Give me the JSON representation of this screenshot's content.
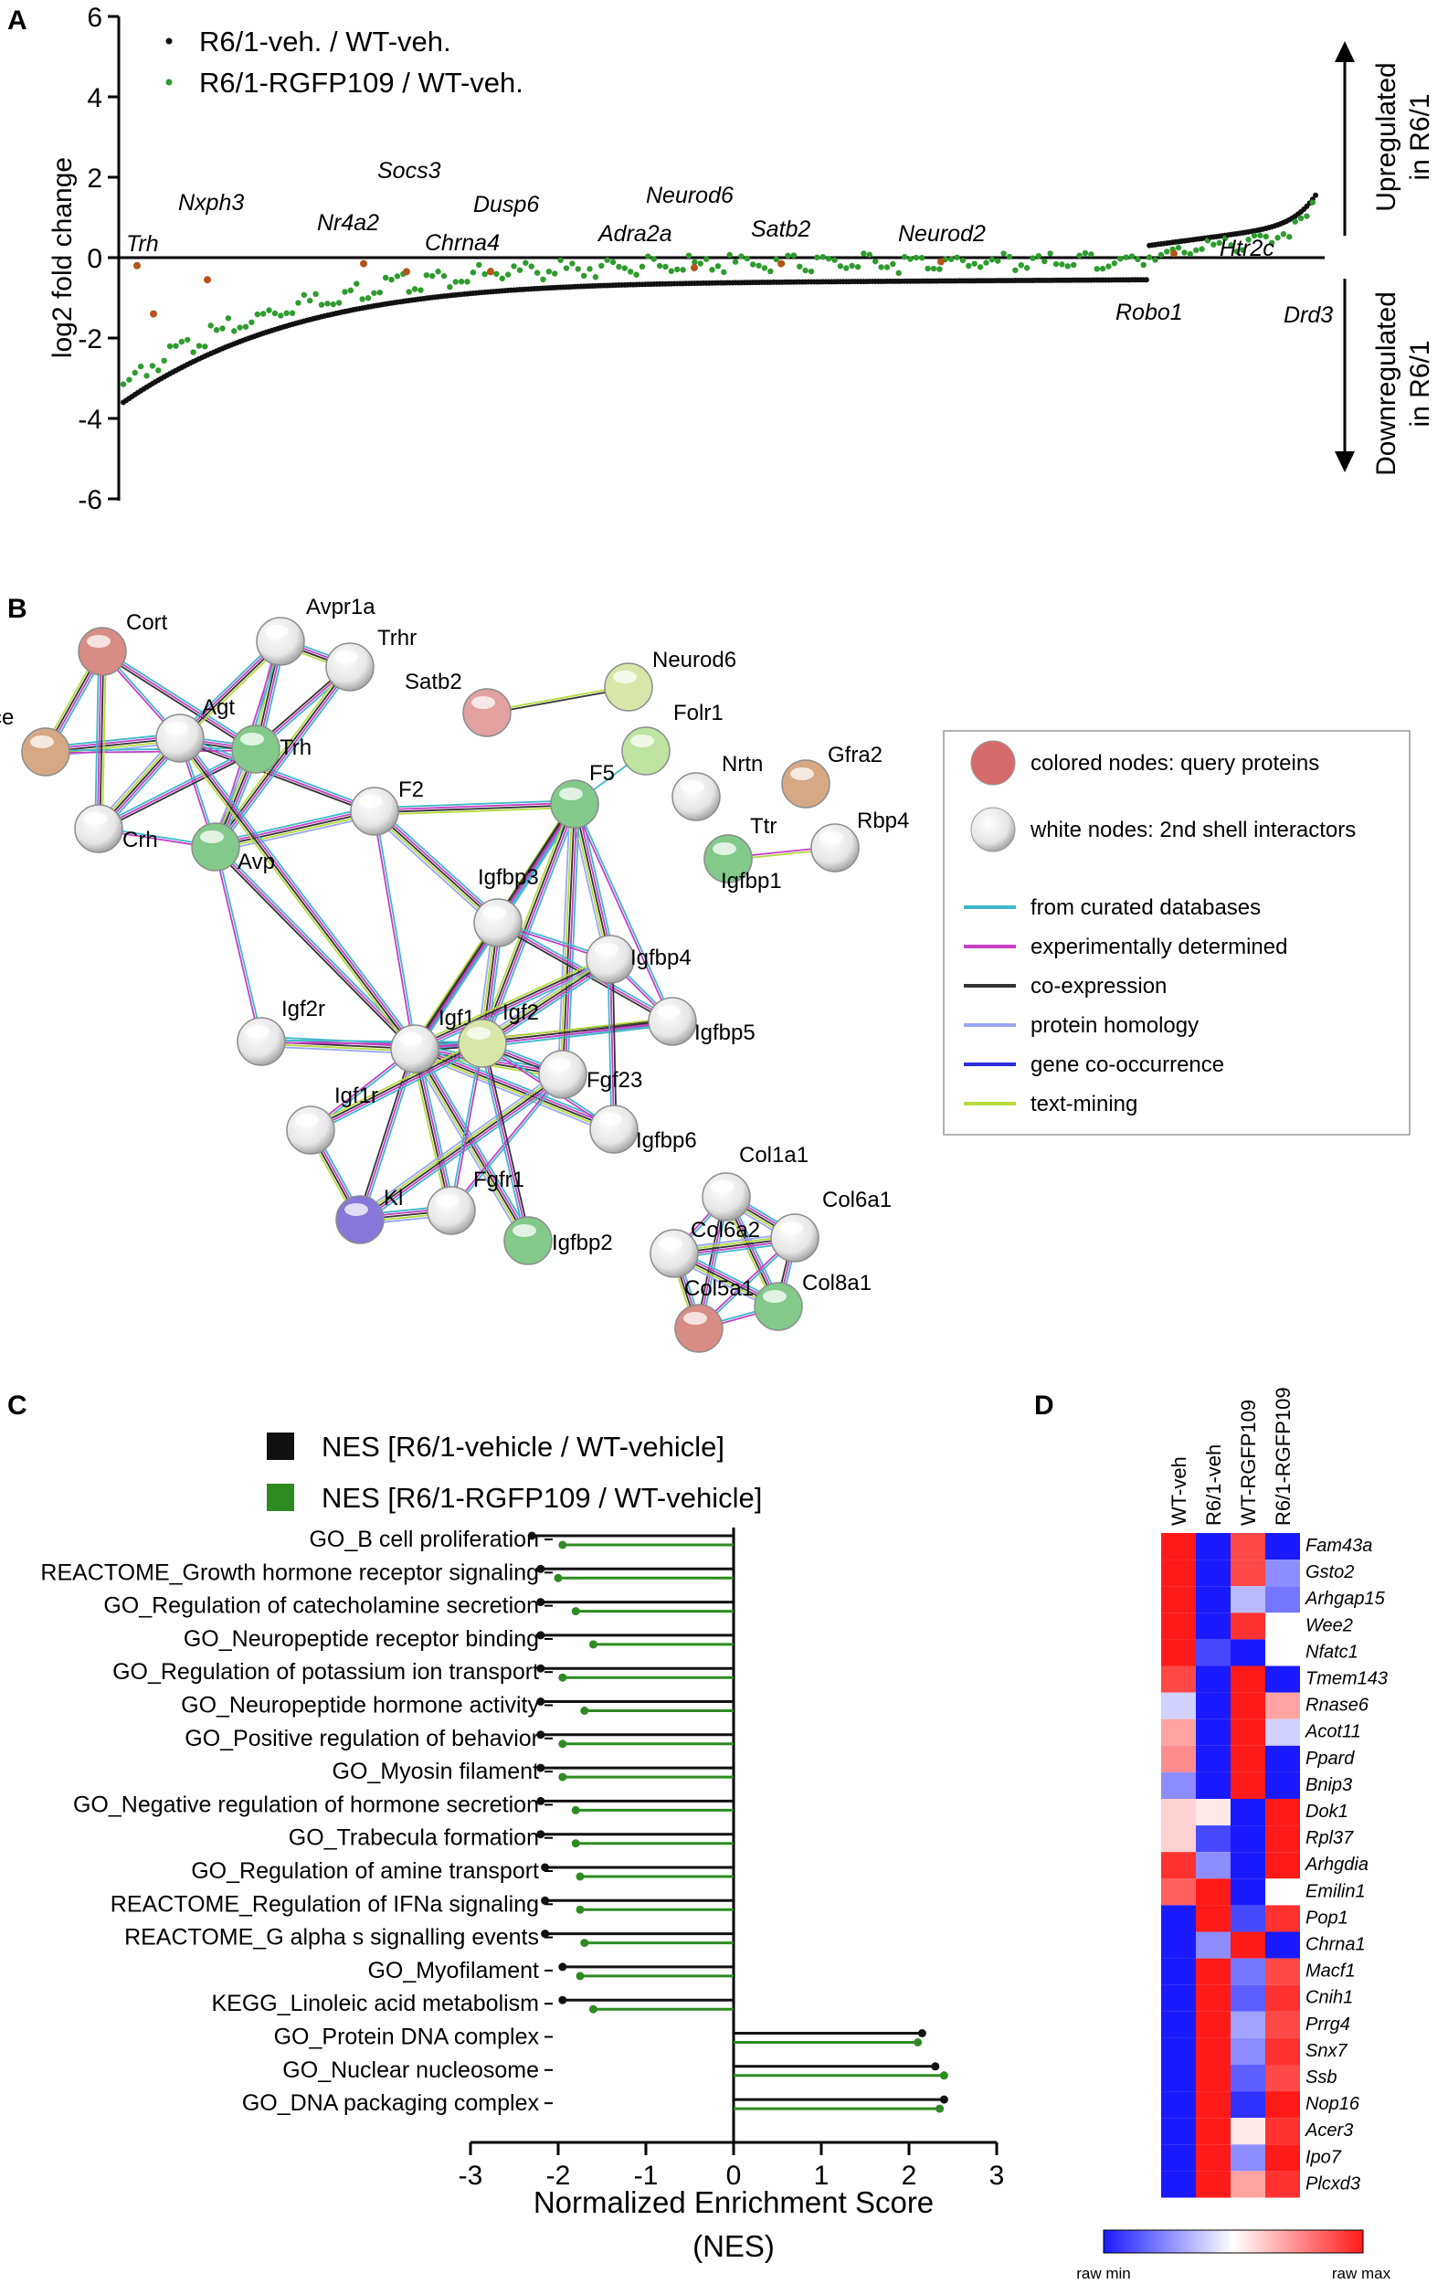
{
  "panels": {
    "A": "A",
    "B": "B",
    "C": "C",
    "D": "D"
  },
  "panel_a": {
    "ylabel": "log2 fold change",
    "legend": [
      "R6/1-veh. / WT-veh.",
      "R6/1-RGFP109 / WT-veh."
    ],
    "yticks": [
      "6",
      "4",
      "2",
      "0",
      "-2",
      "-4",
      "-6"
    ],
    "gene_labels": [
      "Trh",
      "Nxph3",
      "Nr4a2",
      "Socs3",
      "Chrna4",
      "Dusp6",
      "Adra2a",
      "Neurod6",
      "Satb2",
      "Neurod2",
      "Robo1",
      "Htr2c",
      "Drd3"
    ],
    "side_labels": {
      "up_line1": "Upregulated",
      "up_line2": "in R6/1",
      "down_line1": "Downregulated",
      "down_line2": "in R6/1"
    },
    "colors": {
      "veh": "#111111",
      "rgfp": "#2e9b2e",
      "highlight": "#b5541b"
    }
  },
  "panel_b": {
    "nodes": [
      "Cort",
      "Avpr1a",
      "Trhr",
      "Ace",
      "Agt",
      "Trh",
      "Crh",
      "Avp",
      "F2",
      "Satb2",
      "Neurod6",
      "Folr1",
      "Gfra2",
      "Nrtn",
      "F5",
      "Rbp4",
      "Ttr",
      "Igfbp1",
      "Igfbp3",
      "Igfbp4",
      "Igfbp5",
      "Igf2r",
      "Igf1",
      "Igf2",
      "Fgf23",
      "Igfbp6",
      "Igf1r",
      "Kl",
      "Fgfr1",
      "Igfbp2",
      "Col1a1",
      "Col6a1",
      "Col6a2",
      "Col5a1",
      "Col8a1"
    ],
    "legend_nodes": [
      "colored nodes: query proteins",
      "white nodes: 2nd shell interactors"
    ],
    "legend_edges": [
      "from curated databases",
      "experimentally determined",
      "co-expression",
      "protein homology",
      "gene co-occurrence",
      "text-mining"
    ],
    "edge_colors": [
      "#3fb8c9",
      "#c43fc4",
      "#333333",
      "#9aa6f5",
      "#2c2cdb",
      "#b5d93a"
    ]
  },
  "panel_c": {
    "legend": [
      "NES [R6/1-vehicle / WT-vehicle]",
      "NES [R6/1-RGFP109 / WT-vehicle]"
    ],
    "xticks": [
      "-3",
      "-2",
      "-1",
      "0",
      "1",
      "2",
      "3"
    ],
    "xlabel_line1": "Normalized Enrichment Score",
    "xlabel_line2": "(NES)",
    "colors": {
      "veh": "#111111",
      "rgfp": "#2e8b22"
    }
  },
  "panel_d": {
    "columns": [
      "WT-veh",
      "R6/1-veh",
      "WT-RGFP109",
      "R6/1-RGFP109"
    ],
    "genes": [
      "Fam43a",
      "Gsto2",
      "Arhgap15",
      "Wee2",
      "Nfatc1",
      "Tmem143",
      "Rnase6",
      "Acot11",
      "Ppard",
      "Bnip3",
      "Dok1",
      "Rpl37",
      "Arhgdia",
      "Emilin1",
      "Pop1",
      "Chrna1",
      "Macf1",
      "Cnih1",
      "Prrg4",
      "Snx7",
      "Ssb",
      "Nop16",
      "Acer3",
      "Ipo7",
      "Plcxd3"
    ],
    "matrix": [
      [
        1.0,
        -1.0,
        0.8,
        -1.0
      ],
      [
        1.0,
        -1.0,
        0.8,
        -0.5
      ],
      [
        1.0,
        -1.0,
        -0.3,
        -0.6
      ],
      [
        1.0,
        -1.0,
        0.9,
        0.0
      ],
      [
        1.0,
        -0.8,
        -1.0,
        0.0
      ],
      [
        0.8,
        -1.0,
        1.0,
        -1.0
      ],
      [
        -0.2,
        -1.0,
        1.0,
        0.4
      ],
      [
        0.4,
        -1.0,
        1.0,
        -0.2
      ],
      [
        0.5,
        -1.0,
        1.0,
        -1.0
      ],
      [
        -0.5,
        -1.0,
        1.0,
        -1.0
      ],
      [
        0.2,
        0.1,
        -1.0,
        1.0
      ],
      [
        0.2,
        -0.8,
        -1.0,
        1.0
      ],
      [
        0.9,
        -0.5,
        -1.0,
        1.0
      ],
      [
        0.7,
        1.0,
        -1.0,
        0.0
      ],
      [
        -1.0,
        1.0,
        -0.8,
        0.9
      ],
      [
        -1.0,
        -0.5,
        1.0,
        -1.0
      ],
      [
        -1.0,
        1.0,
        -0.6,
        0.8
      ],
      [
        -1.0,
        1.0,
        -0.7,
        0.9
      ],
      [
        -1.0,
        1.0,
        -0.4,
        0.8
      ],
      [
        -1.0,
        1.0,
        -0.5,
        0.9
      ],
      [
        -1.0,
        1.0,
        -0.7,
        0.8
      ],
      [
        -1.0,
        1.0,
        -0.9,
        1.0
      ],
      [
        -1.0,
        1.0,
        0.1,
        0.9
      ],
      [
        -1.0,
        1.0,
        -0.5,
        1.0
      ],
      [
        -1.0,
        1.0,
        0.4,
        0.9
      ]
    ],
    "colorbar_labels": [
      "raw min",
      "raw max"
    ],
    "colors": {
      "min": "#1a1aff",
      "mid": "#ffffff",
      "max": "#ff1a1a"
    }
  },
  "chart_data": [
    {
      "type": "scatter",
      "title": "",
      "xlabel": "",
      "ylabel": "log2 fold change",
      "ylim": [
        -6,
        6
      ],
      "series": [
        {
          "name": "R6/1-veh. / WT-veh.",
          "description_note": "sorted genes, ~410 points"
        },
        {
          "name": "R6/1-RGFP109 / WT-veh."
        }
      ],
      "grid": false,
      "legend": "top-left"
    },
    {
      "type": "bar",
      "title": "",
      "xlabel": "Normalized Enrichment Score (NES)",
      "xlim": [
        -3,
        3
      ],
      "categories": [
        "GO_B cell proliferation",
        "REACTOME_Growth hormone receptor signaling",
        "GO_Regulation of catecholamine secretion",
        "GO_Neuropeptide receptor binding",
        "GO_Regulation of potassium ion transport",
        "GO_Neuropeptide hormone activity",
        "GO_Positive regulation of behavior",
        "GO_Myosin filament",
        "GO_Negative regulation of hormone secretion",
        "GO_Trabecula formation",
        "GO_Regulation of amine transport",
        "REACTOME_Regulation of IFNa signaling",
        "REACTOME_G alpha s signalling events",
        "GO_Myofilament ",
        "KEGG_Linoleic acid metabolism",
        "GO_Protein DNA complex",
        "GO_Nuclear nucleosome",
        "GO_DNA packaging complex"
      ],
      "series": [
        {
          "name": "NES [R6/1-vehicle / WT-vehicle]",
          "values": [
            -2.3,
            -2.2,
            -2.2,
            -2.2,
            -2.2,
            -2.2,
            -2.2,
            -2.2,
            -2.2,
            -2.2,
            -2.15,
            -2.15,
            -2.15,
            -1.95,
            -1.95,
            2.15,
            2.3,
            2.4
          ]
        },
        {
          "name": "NES [R6/1-RGFP109 / WT-vehicle]",
          "values": [
            -1.95,
            -2.0,
            -1.8,
            -1.6,
            -1.95,
            -1.7,
            -1.95,
            -1.95,
            -1.8,
            -1.8,
            -1.75,
            -1.75,
            -1.7,
            -1.75,
            -1.6,
            2.1,
            2.4,
            2.35
          ]
        }
      ],
      "grid": false,
      "legend": "top"
    },
    {
      "type": "heatmap",
      "title": "",
      "x": [
        "WT-veh",
        "R6/1-veh",
        "WT-RGFP109",
        "R6/1-RGFP109"
      ],
      "y": [
        "Fam43a",
        "Gsto2",
        "Arhgap15",
        "Wee2",
        "Nfatc1",
        "Tmem143",
        "Rnase6",
        "Acot11",
        "Ppard",
        "Bnip3",
        "Dok1",
        "Rpl37",
        "Arhgdia",
        "Emilin1",
        "Pop1",
        "Chrna1",
        "Macf1",
        "Cnih1",
        "Prrg4",
        "Snx7",
        "Ssb",
        "Nop16",
        "Acer3",
        "Ipo7",
        "Plcxd3"
      ],
      "legend": "bottom"
    }
  ]
}
